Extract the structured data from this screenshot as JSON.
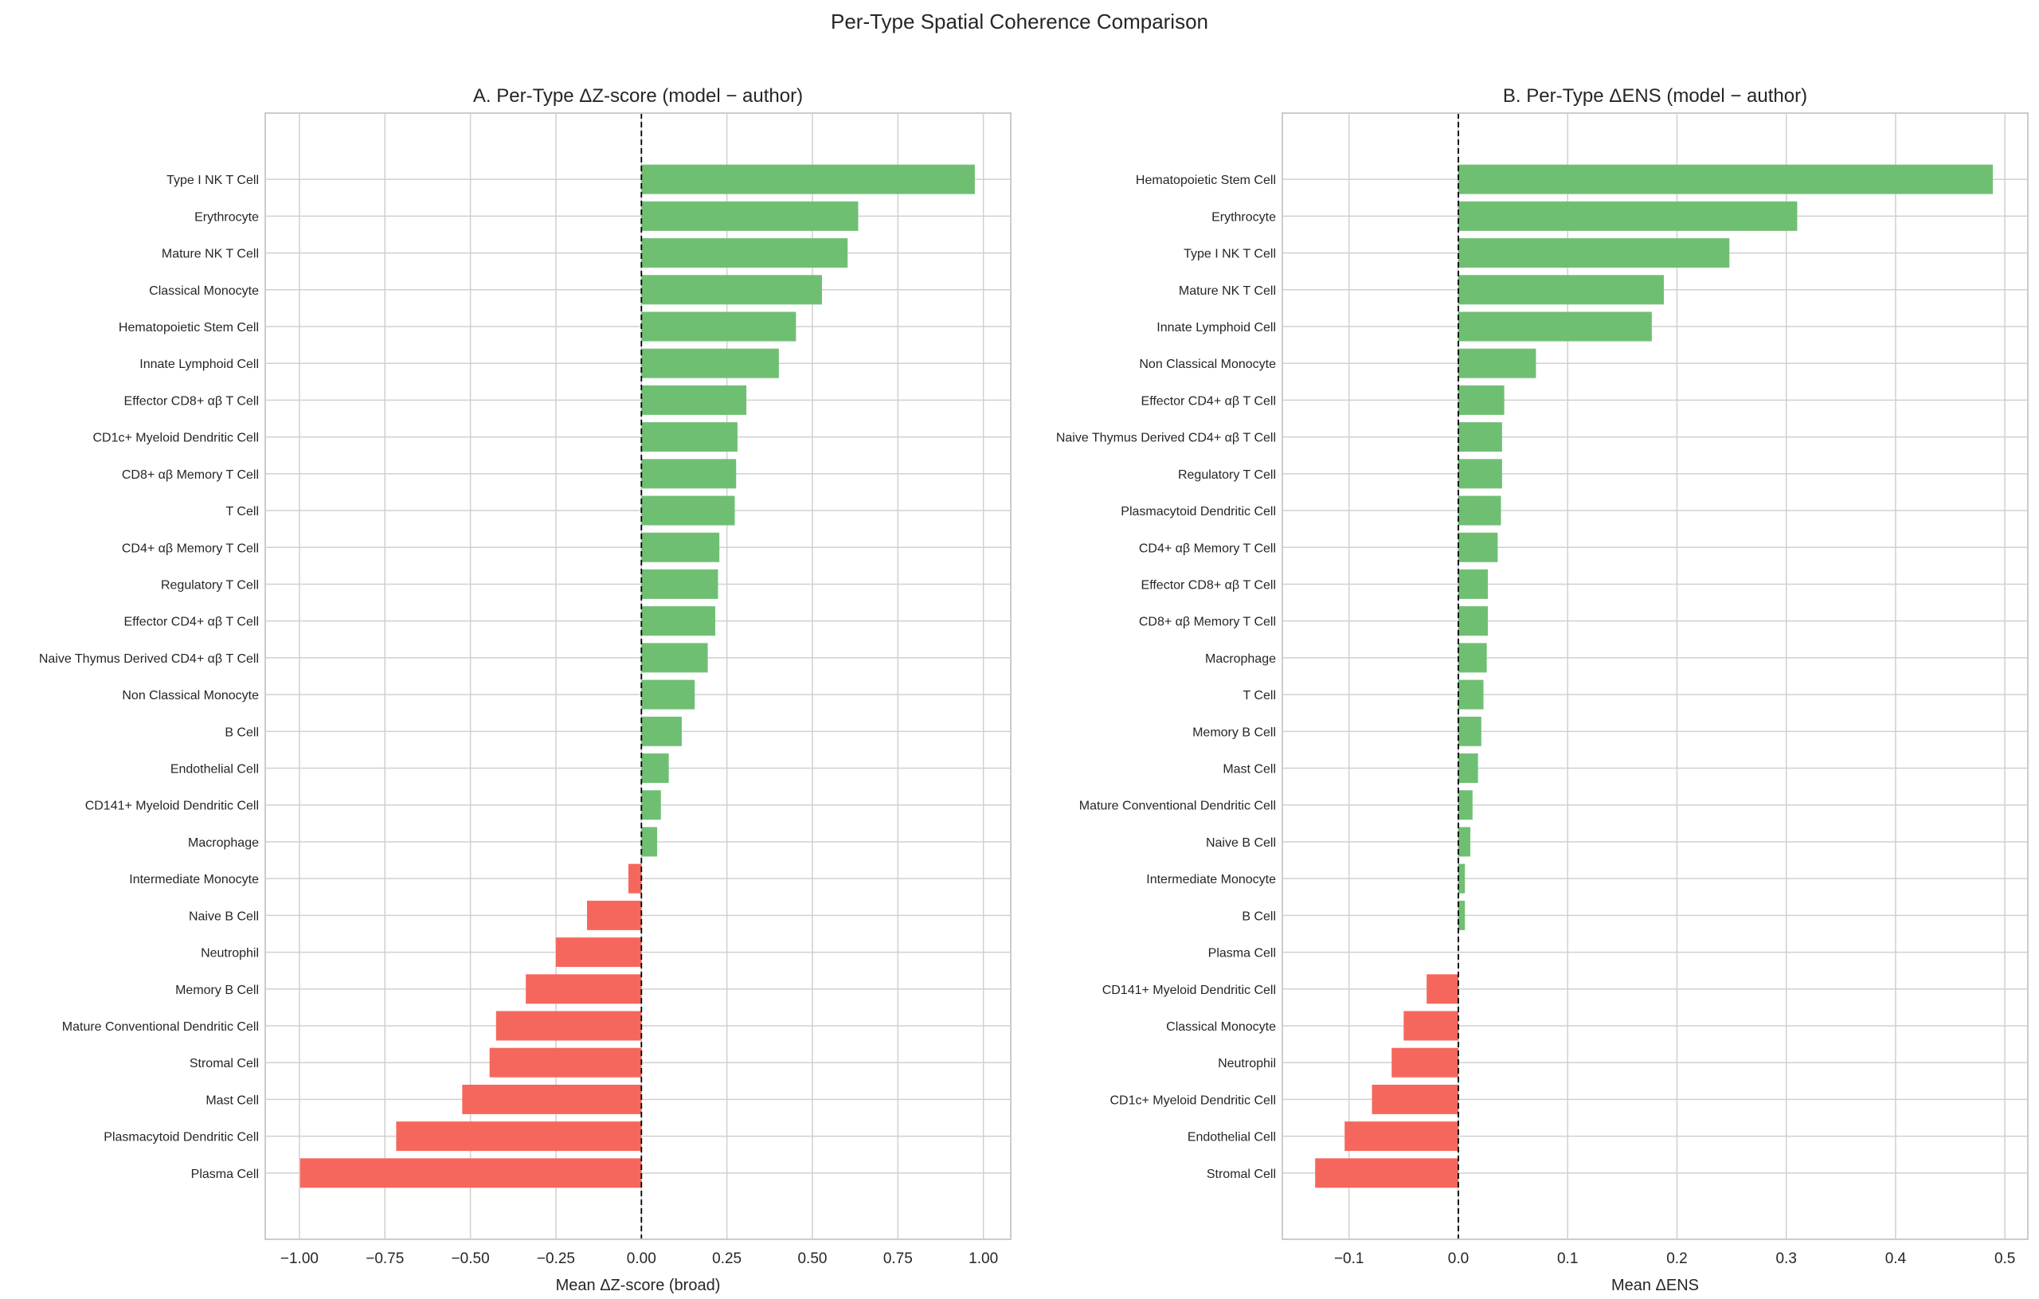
{
  "suptitle": "Per-Type Spatial Coherence Comparison",
  "colors": {
    "positive": "#6fbf73",
    "negative": "#f5675c",
    "grid": "#d0d0d0",
    "zero_line": "#000000"
  },
  "chart_data": [
    {
      "type": "bar",
      "orientation": "horizontal",
      "title": "A. Per-Type ΔZ-score (model − author)",
      "xlabel": "Mean ΔZ-score (broad)",
      "ylabel": "",
      "xlim": [
        -1.1,
        1.08
      ],
      "xticks": [
        -1.0,
        -0.75,
        -0.5,
        -0.25,
        0.0,
        0.25,
        0.5,
        0.75,
        1.0
      ],
      "xtick_labels": [
        "−1.00",
        "−0.75",
        "−0.50",
        "−0.25",
        "0.00",
        "0.25",
        "0.50",
        "0.75",
        "1.00"
      ],
      "grid": true,
      "zero_line": "dashed",
      "categories": [
        "Type I NK T Cell",
        "Erythrocyte",
        "Mature NK T Cell",
        "Classical Monocyte",
        "Hematopoietic Stem Cell",
        "Innate Lymphoid Cell",
        "Effector CD8+ αβ T Cell",
        "CD1c+ Myeloid Dendritic Cell",
        "CD8+ αβ Memory T Cell",
        "T Cell",
        "CD4+ αβ Memory T Cell",
        "Regulatory T Cell",
        "Effector CD4+ αβ T Cell",
        "Naive Thymus Derived CD4+ αβ T Cell",
        "Non Classical Monocyte",
        "B Cell",
        "Endothelial Cell",
        "CD141+ Myeloid Dendritic Cell",
        "Macrophage",
        "Intermediate Monocyte",
        "Naive B Cell",
        "Neutrophil",
        "Memory B Cell",
        "Mature Conventional Dendritic Cell",
        "Stromal Cell",
        "Mast Cell",
        "Plasmacytoid Dendritic Cell",
        "Plasma Cell"
      ],
      "values": [
        0.975,
        0.634,
        0.603,
        0.528,
        0.452,
        0.402,
        0.307,
        0.281,
        0.277,
        0.273,
        0.228,
        0.224,
        0.216,
        0.194,
        0.156,
        0.118,
        0.08,
        0.057,
        0.046,
        -0.038,
        -0.159,
        -0.25,
        -0.338,
        -0.425,
        -0.444,
        -0.524,
        -0.717,
        -0.998
      ]
    },
    {
      "type": "bar",
      "orientation": "horizontal",
      "title": "B. Per-Type ΔENS (model − author)",
      "xlabel": "Mean ΔENS",
      "ylabel": "",
      "xlim": [
        -0.161,
        0.521
      ],
      "xticks": [
        -0.1,
        0.0,
        0.1,
        0.2,
        0.3,
        0.4,
        0.5
      ],
      "xtick_labels": [
        "−0.1",
        "0.0",
        "0.1",
        "0.2",
        "0.3",
        "0.4",
        "0.5"
      ],
      "grid": true,
      "zero_line": "dashed",
      "categories": [
        "Hematopoietic Stem Cell",
        "Erythrocyte",
        "Type I NK T Cell",
        "Mature NK T Cell",
        "Innate Lymphoid Cell",
        "Non Classical Monocyte",
        "Effector CD4+ αβ T Cell",
        "Naive Thymus Derived CD4+ αβ T Cell",
        "Regulatory T Cell",
        "Plasmacytoid Dendritic Cell",
        "CD4+ αβ Memory T Cell",
        "Effector CD8+ αβ T Cell",
        "CD8+ αβ Memory T Cell",
        "Macrophage",
        "T Cell",
        "Memory B Cell",
        "Mast Cell",
        "Mature Conventional Dendritic Cell",
        "Naive B Cell",
        "Intermediate Monocyte",
        "B Cell",
        "Plasma Cell",
        "CD141+ Myeloid Dendritic Cell",
        "Classical Monocyte",
        "Neutrophil",
        "CD1c+ Myeloid Dendritic Cell",
        "Endothelial Cell",
        "Stromal Cell"
      ],
      "values": [
        0.489,
        0.31,
        0.248,
        0.188,
        0.177,
        0.071,
        0.042,
        0.04,
        0.04,
        0.039,
        0.036,
        0.027,
        0.027,
        0.026,
        0.023,
        0.021,
        0.018,
        0.013,
        0.011,
        0.006,
        0.006,
        0.0,
        -0.029,
        -0.05,
        -0.061,
        -0.079,
        -0.104,
        -0.131
      ]
    }
  ]
}
